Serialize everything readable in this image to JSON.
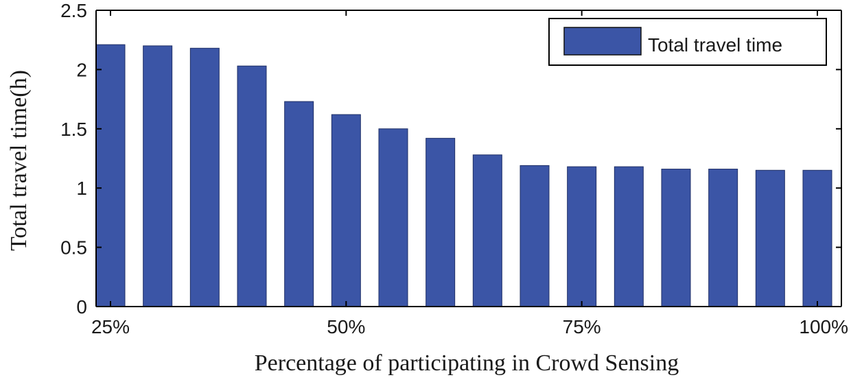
{
  "chart_data": {
    "type": "bar",
    "xlabel": "Percentage of participating in Crowd Sensing",
    "ylabel": "Total travel time(h)",
    "ylim": [
      0,
      2.5
    ],
    "yticks": [
      "0",
      "0.5",
      "1",
      "1.5",
      "2",
      "2.5"
    ],
    "xtick_labels": [
      "25%",
      "50%",
      "75%",
      "100%"
    ],
    "xtick_positions": [
      25,
      50,
      75,
      100
    ],
    "x": [
      25,
      30,
      35,
      40,
      45,
      50,
      55,
      60,
      65,
      70,
      75,
      80,
      85,
      90,
      95,
      100
    ],
    "series": [
      {
        "name": "Total travel time",
        "color": "#3b55a6",
        "values": [
          2.21,
          2.2,
          2.18,
          2.03,
          1.73,
          1.62,
          1.5,
          1.42,
          1.28,
          1.19,
          1.18,
          1.18,
          1.16,
          1.16,
          1.15,
          1.15
        ]
      }
    ],
    "legend": {
      "position": "top-right"
    },
    "grid": false
  }
}
